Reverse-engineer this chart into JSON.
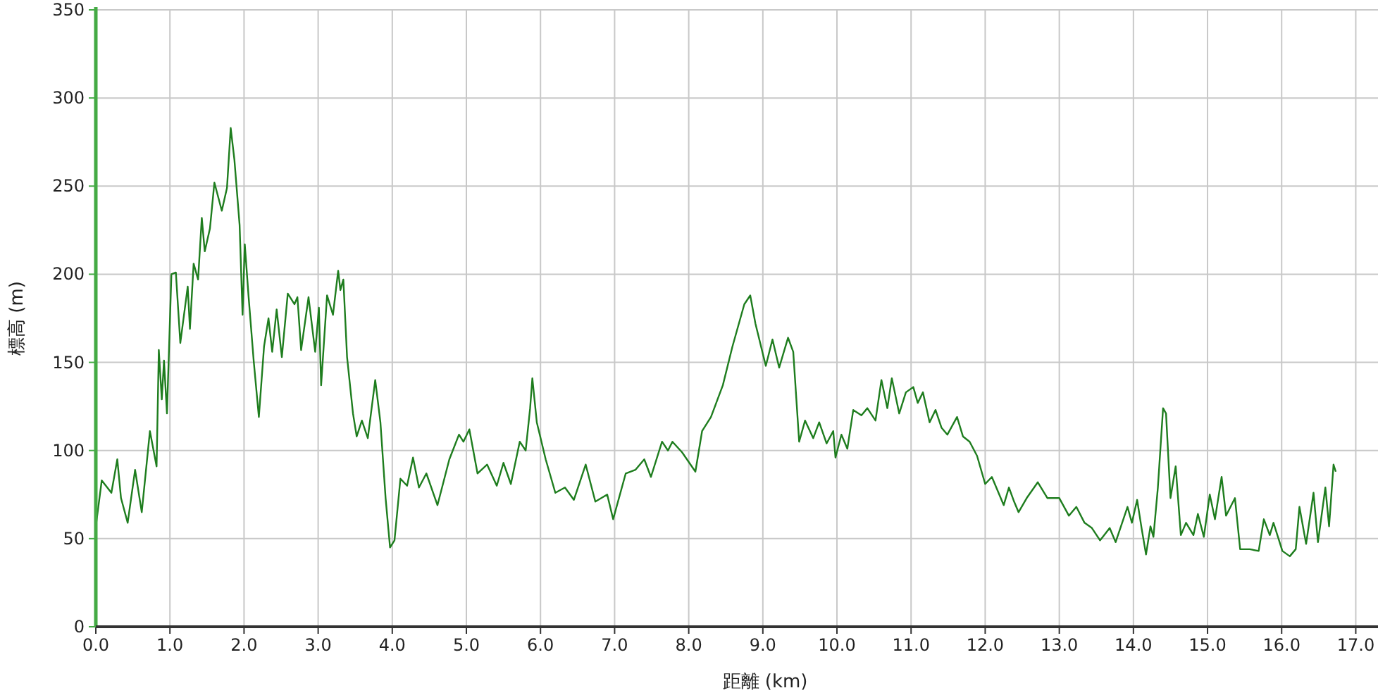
{
  "chart_data": {
    "type": "line",
    "xlabel": "距離 (km)",
    "ylabel": "標高 (m)",
    "grid": true,
    "xlim": [
      0,
      17.3
    ],
    "ylim": [
      0,
      350
    ],
    "xticks": [
      {
        "value": 0,
        "label": "0.0"
      },
      {
        "value": 1,
        "label": "1.0"
      },
      {
        "value": 2,
        "label": "2.0"
      },
      {
        "value": 3,
        "label": "3.0"
      },
      {
        "value": 4,
        "label": "4.0"
      },
      {
        "value": 5,
        "label": "5.0"
      },
      {
        "value": 6,
        "label": "6.0"
      },
      {
        "value": 7,
        "label": "7.0"
      },
      {
        "value": 8,
        "label": "8.0"
      },
      {
        "value": 9,
        "label": "9.0"
      },
      {
        "value": 10,
        "label": "10.0"
      },
      {
        "value": 11,
        "label": "11.0"
      },
      {
        "value": 12,
        "label": "12.0"
      },
      {
        "value": 13,
        "label": "13.0"
      },
      {
        "value": 14,
        "label": "14.0"
      },
      {
        "value": 15,
        "label": "15.0"
      },
      {
        "value": 16,
        "label": "16.0"
      },
      {
        "value": 17,
        "label": "17.0"
      }
    ],
    "yticks": [
      0,
      50,
      100,
      150,
      200,
      250,
      300,
      350
    ],
    "x": [
      0,
      0.08,
      0.21,
      0.29,
      0.34,
      0.43,
      0.53,
      0.62,
      0.73,
      0.82,
      0.85,
      0.89,
      0.92,
      0.96,
      1.02,
      1.08,
      1.14,
      1.24,
      1.27,
      1.32,
      1.38,
      1.43,
      1.47,
      1.54,
      1.6,
      1.7,
      1.77,
      1.82,
      1.87,
      1.94,
      1.98,
      2.01,
      2.06,
      2.13,
      2.2,
      2.27,
      2.33,
      2.38,
      2.44,
      2.51,
      2.59,
      2.68,
      2.72,
      2.77,
      2.87,
      2.96,
      3.01,
      3.04,
      3.12,
      3.2,
      3.27,
      3.3,
      3.34,
      3.39,
      3.47,
      3.52,
      3.59,
      3.67,
      3.77,
      3.84,
      3.91,
      3.97,
      4.03,
      4.11,
      4.2,
      4.28,
      4.36,
      4.46,
      4.61,
      4.77,
      4.9,
      4.96,
      5.04,
      5.15,
      5.28,
      5.41,
      5.5,
      5.6,
      5.72,
      5.8,
      5.86,
      5.89,
      5.95,
      6.07,
      6.2,
      6.33,
      6.45,
      6.61,
      6.74,
      6.9,
      6.98,
      7.15,
      7.28,
      7.4,
      7.49,
      7.64,
      7.72,
      7.78,
      7.91,
      8.09,
      8.18,
      8.3,
      8.46,
      8.59,
      8.75,
      8.83,
      8.9,
      9.04,
      9.13,
      9.22,
      9.34,
      9.41,
      9.49,
      9.57,
      9.68,
      9.76,
      9.86,
      9.95,
      9.98,
      10.06,
      10.14,
      10.22,
      10.33,
      10.41,
      10.52,
      10.6,
      10.68,
      10.74,
      10.84,
      10.93,
      11.03,
      11.09,
      11.16,
      11.25,
      11.33,
      11.41,
      11.49,
      11.62,
      11.7,
      11.79,
      11.89,
      12.0,
      12.09,
      12.25,
      12.32,
      12.39,
      12.45,
      12.56,
      12.71,
      12.84,
      13.0,
      13.13,
      13.23,
      13.34,
      13.44,
      13.55,
      13.68,
      13.76,
      13.92,
      13.98,
      14.05,
      14.11,
      14.17,
      14.23,
      14.27,
      14.33,
      14.4,
      14.44,
      14.5,
      14.57,
      14.64,
      14.71,
      14.81,
      14.87,
      14.95,
      15.03,
      15.1,
      15.19,
      15.25,
      15.37,
      15.44,
      15.57,
      15.69,
      15.76,
      15.84,
      15.89,
      16.01,
      16.11,
      16.19,
      16.24,
      16.33,
      16.43,
      16.49,
      16.59,
      16.64,
      16.7,
      16.73
    ],
    "series": [
      {
        "color": "#1e7d1e",
        "values": [
          57,
          83,
          76,
          95,
          73,
          59,
          89,
          65,
          111,
          91,
          157,
          129,
          151,
          121,
          200,
          201,
          161,
          193,
          169,
          206,
          197,
          232,
          213,
          226,
          252,
          236,
          249,
          283,
          265,
          228,
          177,
          217,
          188,
          151,
          119,
          159,
          175,
          156,
          180,
          153,
          189,
          183,
          187,
          157,
          187,
          156,
          181,
          137,
          188,
          177,
          202,
          191,
          197,
          153,
          121,
          108,
          117,
          107,
          140,
          116,
          73,
          45,
          49,
          84,
          80,
          96,
          79,
          87,
          69,
          95,
          109,
          105,
          112,
          87,
          92,
          80,
          93,
          81,
          105,
          100,
          124,
          141,
          116,
          95,
          76,
          79,
          72,
          92,
          71,
          75,
          61,
          87,
          89,
          95,
          85,
          105,
          100,
          105,
          99,
          88,
          111,
          119,
          137,
          159,
          183,
          188,
          172,
          148,
          163,
          147,
          164,
          156,
          105,
          117,
          107,
          116,
          104,
          111,
          96,
          109,
          101,
          123,
          120,
          124,
          117,
          140,
          124,
          141,
          121,
          133,
          136,
          127,
          133,
          116,
          123,
          113,
          109,
          119,
          108,
          105,
          97,
          81,
          85,
          69,
          79,
          71,
          65,
          73,
          82,
          73,
          73,
          63,
          68,
          59,
          56,
          49,
          56,
          48,
          68,
          59,
          72,
          56,
          41,
          57,
          51,
          79,
          124,
          121,
          73,
          91,
          52,
          59,
          52,
          64,
          51,
          75,
          61,
          85,
          63,
          73,
          44,
          44,
          43,
          61,
          52,
          59,
          43,
          40,
          44,
          68,
          47,
          76,
          48,
          79,
          57,
          92,
          88
        ]
      }
    ]
  }
}
